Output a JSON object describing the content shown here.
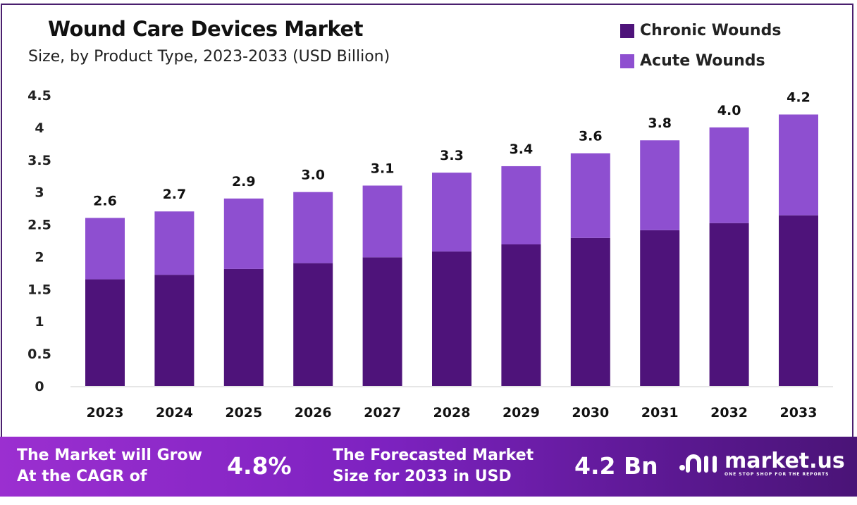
{
  "chart_data": {
    "type": "bar",
    "stacked": true,
    "title": "Wound Care Devices Market",
    "subtitle": "Size, by Product Type, 2023-2033 (USD Billion)",
    "categories": [
      "2023",
      "2024",
      "2025",
      "2026",
      "2027",
      "2028",
      "2029",
      "2030",
      "2031",
      "2032",
      "2033"
    ],
    "series": [
      {
        "name": "Chronic Wounds",
        "color": "#4e137a",
        "values": [
          1.65,
          1.72,
          1.81,
          1.9,
          1.99,
          2.08,
          2.19,
          2.29,
          2.41,
          2.52,
          2.64
        ]
      },
      {
        "name": "Acute Wounds",
        "color": "#8e4fd0",
        "values": [
          0.95,
          0.98,
          1.09,
          1.1,
          1.11,
          1.22,
          1.21,
          1.31,
          1.39,
          1.48,
          1.56
        ]
      }
    ],
    "totals_labels": [
      "2.6",
      "2.7",
      "2.9",
      "3.0",
      "3.1",
      "3.3",
      "3.4",
      "3.6",
      "3.8",
      "4.0",
      "4.2"
    ],
    "ylim": [
      0,
      4.5
    ],
    "yticks": [
      "0",
      "0.5",
      "1",
      "1.5",
      "2",
      "2.5",
      "3",
      "3.5",
      "4",
      "4.5"
    ],
    "grid": false,
    "legend_position": "top-right"
  },
  "banner": {
    "cagr_text_1": "The Market will Grow",
    "cagr_text_2": "At the CAGR of",
    "cagr_value": "4.8%",
    "forecast_text_1": "The Forecasted Market",
    "forecast_text_2": "Size for 2033 in USD",
    "forecast_value": "4.2 Bn",
    "logo_name": "market.us",
    "logo_tagline": "ONE STOP SHOP FOR THE REPORTS"
  }
}
